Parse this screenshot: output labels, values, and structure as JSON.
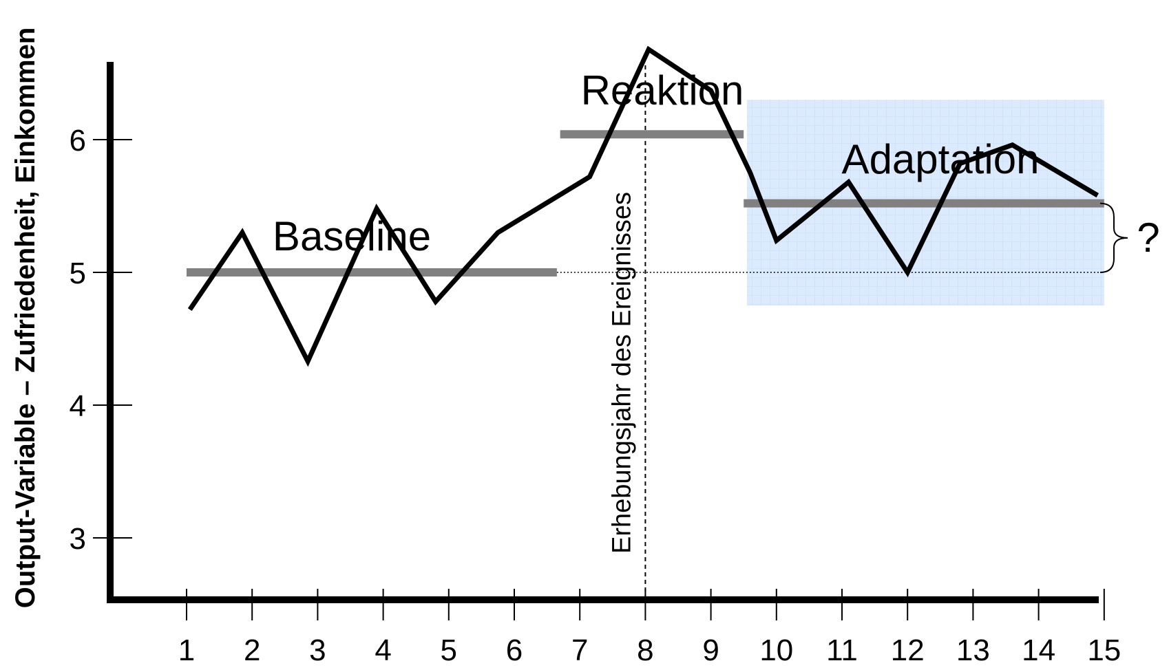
{
  "chart_data": {
    "type": "line",
    "title": "",
    "xlabel": "",
    "ylabel": "Output-Variable – Zufriedenheit, Einkommen",
    "x_ticks": [
      "1",
      "2",
      "3",
      "4",
      "5",
      "6",
      "7",
      "8",
      "9",
      "10",
      "11",
      "12",
      "13",
      "14",
      "15"
    ],
    "y_ticks": [
      "3",
      "4",
      "5",
      "6"
    ],
    "xlim": [
      1,
      15
    ],
    "ylim": [
      2.6,
      6.6
    ],
    "series": [
      {
        "x": [
          1.05,
          1.85,
          2.85,
          3.9,
          4.8,
          5.75,
          7.15,
          8.05,
          9.0,
          9.6,
          10.0,
          11.1,
          12.0,
          12.8,
          13.6,
          14.9
        ],
        "y": [
          4.72,
          5.3,
          4.33,
          5.48,
          4.78,
          5.3,
          5.72,
          6.68,
          6.37,
          5.75,
          5.24,
          5.68,
          5.0,
          5.82,
          5.96,
          5.58
        ]
      }
    ],
    "phases": [
      {
        "label": "Baseline",
        "x_start": 1,
        "x_end": 6.65,
        "level": 5.0
      },
      {
        "label": "Reaktion",
        "x_start": 6.7,
        "x_end": 9.5,
        "level": 6.04
      },
      {
        "label": "Adaptation",
        "x_start": 9.5,
        "x_end": 15,
        "level": 5.52
      }
    ],
    "adaptation_window": {
      "x_start": 9.55,
      "x_end": 15.0,
      "y_low": 4.75,
      "y_high": 6.3
    },
    "event": {
      "x": 8,
      "label": "Erhebungsjahr des Ereignisses"
    },
    "reference_level": 5.0,
    "difference_label": "?",
    "grid": false,
    "legend": "none"
  },
  "colors": {
    "line": "#000000",
    "phase_bar": "#808080",
    "adaptation_fill": "#dbeafc",
    "adaptation_grid": "#c6dcf5"
  }
}
